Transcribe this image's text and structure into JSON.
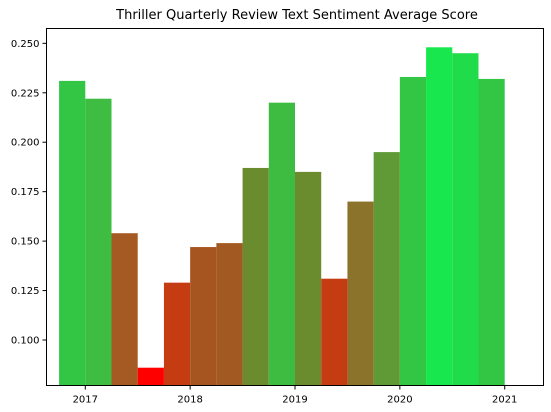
{
  "chart_data": {
    "type": "bar",
    "title": "Thriller Quarterly Review Text Sentiment Average Score",
    "xlabel": "",
    "ylabel": "",
    "x_tick_labels": [
      "2017",
      "2018",
      "2019",
      "2020",
      "2021"
    ],
    "x_tick_positions": [
      2017,
      2018,
      2019,
      2020,
      2021
    ],
    "y_tick_labels": [
      "0.100",
      "0.125",
      "0.150",
      "0.175",
      "0.200",
      "0.225",
      "0.250"
    ],
    "y_tick_values": [
      0.1,
      0.125,
      0.15,
      0.175,
      0.2,
      0.225,
      0.25
    ],
    "xlim": [
      2016.63,
      2021.37
    ],
    "ylim": [
      0.077,
      0.2575
    ],
    "bar_width_years": 0.25,
    "grid": false,
    "legend": "none",
    "bars": [
      {
        "x": 2016.875,
        "value": 0.231,
        "color": "#33c645"
      },
      {
        "x": 2017.125,
        "value": 0.222,
        "color": "#3fbd43"
      },
      {
        "x": 2017.375,
        "value": 0.154,
        "color": "#a45a22"
      },
      {
        "x": 2017.625,
        "value": 0.086,
        "color": "#ff0000"
      },
      {
        "x": 2017.875,
        "value": 0.129,
        "color": "#c53c12"
      },
      {
        "x": 2018.125,
        "value": 0.147,
        "color": "#a65520"
      },
      {
        "x": 2018.375,
        "value": 0.149,
        "color": "#a25a22"
      },
      {
        "x": 2018.625,
        "value": 0.187,
        "color": "#6a8b2e"
      },
      {
        "x": 2018.875,
        "value": 0.22,
        "color": "#3ebc41"
      },
      {
        "x": 2019.125,
        "value": 0.185,
        "color": "#6a8b2e"
      },
      {
        "x": 2019.375,
        "value": 0.131,
        "color": "#c53c12"
      },
      {
        "x": 2019.625,
        "value": 0.17,
        "color": "#8b732b"
      },
      {
        "x": 2019.875,
        "value": 0.195,
        "color": "#5f9a36"
      },
      {
        "x": 2020.125,
        "value": 0.233,
        "color": "#33c645"
      },
      {
        "x": 2020.375,
        "value": 0.248,
        "color": "#18e84e"
      },
      {
        "x": 2020.625,
        "value": 0.245,
        "color": "#21dc4a"
      },
      {
        "x": 2020.875,
        "value": 0.232,
        "color": "#33c645"
      }
    ]
  }
}
